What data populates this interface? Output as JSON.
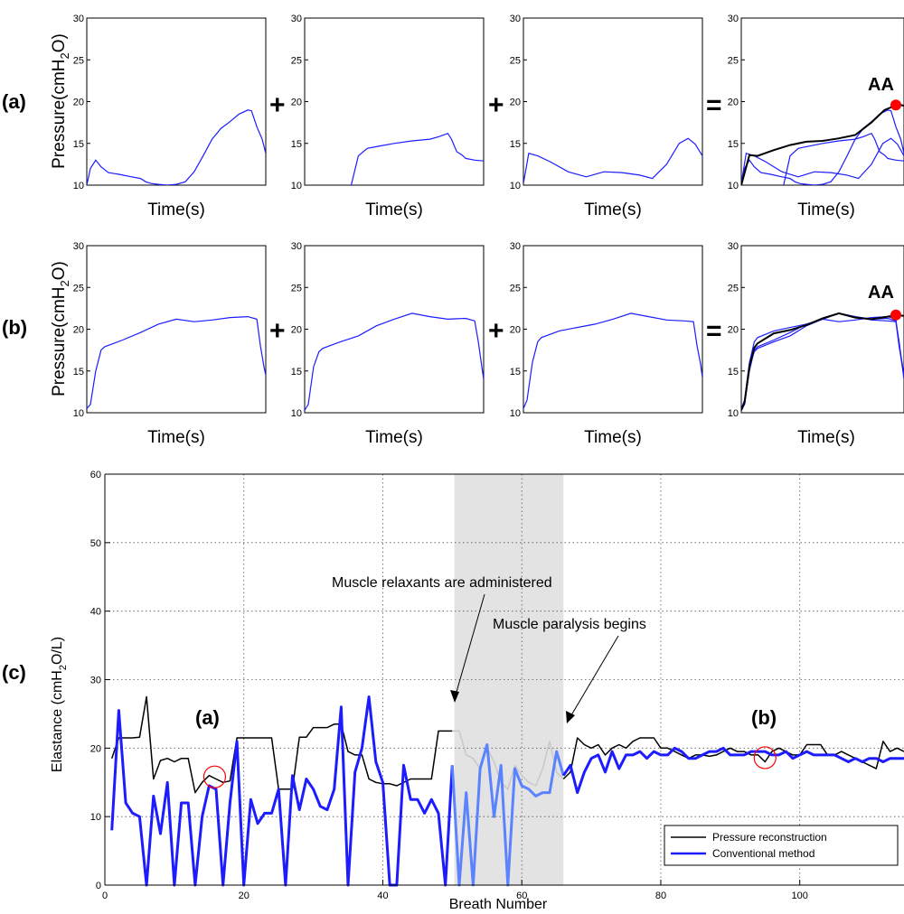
{
  "panel_labels": [
    "(a)",
    "(b)",
    "(c)"
  ],
  "operators": [
    "+",
    "+",
    "="
  ],
  "aa_label": "AA",
  "top_charts": {
    "ylabel": "Pressure(cmH2O)",
    "xlabel": "Time(s)",
    "yticks": [
      10,
      15,
      20,
      25,
      30
    ]
  },
  "bottom_chart": {
    "ylabel": "Elastance (cmH2O/L)",
    "xlabel": "Breath Number",
    "xticks": [
      0,
      20,
      40,
      60,
      80,
      100
    ],
    "yticks": [
      0,
      10,
      20,
      30,
      40,
      50,
      60
    ],
    "annotations": [
      "Muscle relaxants are administered",
      "Muscle paralysis begins"
    ],
    "markers": [
      "(a)",
      "(b)"
    ],
    "legend": [
      "Pressure reconstruction",
      "Conventional method"
    ]
  },
  "colors": {
    "reconstruction": "#000000",
    "conventional": "#1c1cff",
    "conventional_shaded": "#5b82ff",
    "reconstruction_shaded": "#c8c8c8",
    "shade": "#e3e3e3",
    "marker": "#ff0000"
  },
  "chart_data": [
    {
      "type": "line",
      "panel": "a1",
      "ylim": [
        10,
        30
      ],
      "x": [
        0,
        0.02,
        0.05,
        0.08,
        0.12,
        0.18,
        0.25,
        0.3,
        0.33,
        0.36,
        0.4,
        0.45,
        0.5,
        0.55,
        0.6,
        0.65,
        0.7,
        0.75,
        0.8,
        0.85,
        0.9,
        0.92,
        0.95,
        0.98,
        1.0
      ],
      "y": [
        10.0,
        12.0,
        13.0,
        12.2,
        11.5,
        11.3,
        11.0,
        10.8,
        10.4,
        10.2,
        10.1,
        10.0,
        10.1,
        10.4,
        11.6,
        13.5,
        15.5,
        16.8,
        17.6,
        18.5,
        19.0,
        18.9,
        17.0,
        15.5,
        13.8
      ]
    },
    {
      "type": "line",
      "panel": "a2",
      "ylim": [
        10,
        30
      ],
      "x": [
        0.26,
        0.3,
        0.35,
        0.4,
        0.5,
        0.6,
        0.7,
        0.75,
        0.8,
        0.82,
        0.85,
        0.88,
        0.9,
        0.95,
        1.0
      ],
      "y": [
        10.0,
        13.5,
        14.4,
        14.6,
        15.0,
        15.3,
        15.5,
        15.8,
        16.2,
        15.5,
        14.0,
        13.6,
        13.2,
        13.0,
        12.9
      ]
    },
    {
      "type": "line",
      "panel": "a3",
      "ylim": [
        10,
        30
      ],
      "x": [
        0,
        0.03,
        0.08,
        0.15,
        0.25,
        0.35,
        0.45,
        0.55,
        0.65,
        0.72,
        0.8,
        0.87,
        0.92,
        0.96,
        1.0
      ],
      "y": [
        10.2,
        13.8,
        13.5,
        12.8,
        11.6,
        11.0,
        11.6,
        11.5,
        11.2,
        10.8,
        12.5,
        15.0,
        15.6,
        14.9,
        13.5
      ]
    },
    {
      "type": "line",
      "panel": "a4",
      "ylim": [
        10,
        30
      ],
      "x": [
        0,
        0.05,
        0.1,
        0.2,
        0.3,
        0.4,
        0.5,
        0.6,
        0.7,
        0.8,
        0.88,
        0.93,
        0.98,
        1.0
      ],
      "y": [
        10.0,
        13.6,
        13.5,
        14.2,
        14.8,
        15.2,
        15.3,
        15.6,
        16.0,
        17.5,
        19.0,
        19.4,
        19.6,
        19.5
      ]
    },
    {
      "type": "line",
      "panel": "b1",
      "ylim": [
        10,
        30
      ],
      "x": [
        0,
        0.02,
        0.05,
        0.08,
        0.1,
        0.2,
        0.3,
        0.4,
        0.5,
        0.6,
        0.7,
        0.8,
        0.9,
        0.95,
        0.97,
        0.99,
        1.0
      ],
      "y": [
        10.5,
        11.0,
        15.0,
        17.5,
        17.9,
        18.7,
        19.6,
        20.6,
        21.2,
        20.9,
        21.1,
        21.4,
        21.5,
        21.2,
        18.0,
        15.5,
        14.5
      ]
    },
    {
      "type": "line",
      "panel": "b2",
      "ylim": [
        10,
        30
      ],
      "x": [
        0,
        0.02,
        0.05,
        0.08,
        0.1,
        0.2,
        0.3,
        0.4,
        0.5,
        0.6,
        0.7,
        0.8,
        0.9,
        0.95,
        0.97,
        0.99,
        1.0
      ],
      "y": [
        10.3,
        11.0,
        15.5,
        17.3,
        17.7,
        18.5,
        19.2,
        20.4,
        21.2,
        21.9,
        21.5,
        21.2,
        21.3,
        21.0,
        18.5,
        15.5,
        14.0
      ]
    },
    {
      "type": "line",
      "panel": "b3",
      "ylim": [
        10,
        30
      ],
      "x": [
        0,
        0.02,
        0.05,
        0.08,
        0.1,
        0.2,
        0.3,
        0.4,
        0.5,
        0.6,
        0.7,
        0.8,
        0.9,
        0.95,
        0.97,
        0.99,
        1.0
      ],
      "y": [
        10.5,
        11.5,
        16.0,
        18.5,
        19.0,
        19.8,
        20.2,
        20.6,
        21.2,
        21.9,
        21.5,
        21.1,
        21.0,
        20.9,
        18.0,
        15.8,
        14.2
      ]
    },
    {
      "type": "line",
      "panel": "b4",
      "ylim": [
        10,
        30
      ],
      "x": [
        0,
        0.02,
        0.05,
        0.08,
        0.1,
        0.2,
        0.3,
        0.4,
        0.5,
        0.6,
        0.7,
        0.8,
        0.9,
        0.95,
        1.0
      ],
      "y": [
        10.3,
        11.2,
        15.5,
        17.8,
        18.3,
        19.5,
        19.9,
        20.5,
        21.3,
        21.9,
        21.4,
        21.2,
        21.5,
        21.7,
        21.6
      ]
    },
    {
      "type": "line",
      "panel": "c",
      "xlim": [
        0,
        115
      ],
      "ylim": [
        0,
        60
      ],
      "xlabel": "Breath Number",
      "ylabel": "Elastance (cmH2O/L)",
      "series": [
        {
          "name": "Pressure reconstruction",
          "x": [
            1,
            2,
            3,
            4,
            5,
            6,
            7,
            8,
            9,
            10,
            11,
            12,
            13,
            14,
            15,
            16,
            17,
            18,
            19,
            20,
            21,
            22,
            23,
            24,
            25,
            26,
            27,
            28,
            29,
            30,
            31,
            32,
            33,
            34,
            35,
            36,
            37,
            38,
            39,
            40,
            41,
            42,
            43,
            44,
            45,
            46,
            47,
            48,
            49,
            50,
            51,
            52,
            53,
            54,
            55,
            56,
            57,
            58,
            59,
            60,
            61,
            62,
            63,
            64,
            65,
            66,
            67,
            68,
            69,
            70,
            71,
            72,
            73,
            74,
            75,
            76,
            77,
            78,
            79,
            80,
            81,
            82,
            83,
            84,
            85,
            86,
            87,
            88,
            89,
            90,
            91,
            92,
            93,
            94,
            95,
            96,
            97,
            98,
            99,
            100,
            101,
            102,
            103,
            104,
            105,
            106,
            107,
            108,
            109,
            110,
            111,
            112,
            113,
            114,
            115
          ],
          "y": [
            18.5,
            21.5,
            21.5,
            21.5,
            21.6,
            27.5,
            15.5,
            18.2,
            18.5,
            18.0,
            18.5,
            18.5,
            13.5,
            15.0,
            16.0,
            15.5,
            15.0,
            15.2,
            21.5,
            21.5,
            21.5,
            21.5,
            21.5,
            21.5,
            14.0,
            14.0,
            14.0,
            21.6,
            21.6,
            23.0,
            23.0,
            23.0,
            23.5,
            23.5,
            19.5,
            19.0,
            19.0,
            15.5,
            15.0,
            14.8,
            14.8,
            14.5,
            15.0,
            15.5,
            15.5,
            15.5,
            15.5,
            22.5,
            22.5,
            22.5,
            22.5,
            19.0,
            18.5,
            17.0,
            20.0,
            18.0,
            15.0,
            14.0,
            17.5,
            16.0,
            15.0,
            14.5,
            17.0,
            21.0,
            16.5,
            15.5,
            16.5,
            21.5,
            20.5,
            20.0,
            20.5,
            19.0,
            20.0,
            20.5,
            20.0,
            21.0,
            21.5,
            21.5,
            21.5,
            20.0,
            20.0,
            19.5,
            19.0,
            18.5,
            19.0,
            19.0,
            18.8,
            19.0,
            19.5,
            20.0,
            19.5,
            19.5,
            19.0,
            19.0,
            18.0,
            19.5,
            20.0,
            19.5,
            19.0,
            19.0,
            20.5,
            20.5,
            20.5,
            19.0,
            19.0,
            19.5,
            19.0,
            18.5,
            18.0,
            17.5,
            17.0,
            21.0,
            19.5,
            20.0,
            19.5
          ]
        },
        {
          "name": "Conventional method",
          "x": [
            1,
            2,
            3,
            4,
            5,
            6,
            7,
            8,
            9,
            10,
            11,
            12,
            13,
            14,
            15,
            16,
            17,
            18,
            19,
            20,
            21,
            22,
            23,
            24,
            25,
            26,
            27,
            28,
            29,
            30,
            31,
            32,
            33,
            34,
            35,
            36,
            37,
            38,
            39,
            40,
            41,
            42,
            43,
            44,
            45,
            46,
            47,
            48,
            49,
            50,
            51,
            52,
            53,
            54,
            55,
            56,
            57,
            58,
            59,
            60,
            61,
            62,
            63,
            64,
            65,
            66,
            67,
            68,
            69,
            70,
            71,
            72,
            73,
            74,
            75,
            76,
            77,
            78,
            79,
            80,
            81,
            82,
            83,
            84,
            85,
            86,
            87,
            88,
            89,
            90,
            91,
            92,
            93,
            94,
            95,
            96,
            97,
            98,
            99,
            100,
            101,
            102,
            103,
            104,
            105,
            106,
            107,
            108,
            109,
            110,
            111,
            112,
            113,
            114,
            115
          ],
          "y": [
            8.0,
            25.5,
            12.0,
            10.5,
            10.0,
            0.0,
            13.0,
            7.5,
            15.0,
            0.0,
            12.0,
            12.0,
            0.0,
            10.0,
            14.5,
            14.0,
            0.0,
            12.0,
            21.0,
            0.0,
            12.5,
            9.0,
            10.5,
            10.5,
            14.0,
            0.0,
            16.0,
            11.0,
            15.5,
            14.0,
            11.5,
            11.0,
            14.0,
            26.0,
            0.0,
            16.5,
            20.0,
            27.5,
            18.0,
            15.0,
            0.0,
            0.0,
            17.5,
            12.5,
            12.5,
            10.5,
            12.5,
            10.5,
            0.0,
            17.5,
            0.0,
            13.5,
            0.0,
            17.0,
            20.5,
            10.0,
            17.5,
            0.0,
            17.0,
            14.5,
            14.0,
            13.0,
            13.5,
            13.5,
            19.5,
            16.0,
            17.5,
            13.5,
            16.5,
            18.5,
            19.0,
            16.5,
            19.5,
            17.0,
            19.0,
            19.0,
            19.5,
            18.5,
            19.5,
            19.0,
            19.0,
            20.0,
            19.5,
            18.5,
            18.5,
            19.0,
            19.5,
            19.5,
            20.0,
            19.0,
            19.0,
            19.0,
            19.5,
            19.5,
            19.5,
            19.0,
            19.0,
            19.5,
            18.5,
            19.0,
            19.5,
            19.0,
            19.0,
            19.0,
            19.0,
            18.5,
            18.0,
            18.5,
            18.0,
            18.5,
            18.5,
            18.0,
            18.5,
            18.5,
            18.5
          ]
        }
      ]
    }
  ]
}
